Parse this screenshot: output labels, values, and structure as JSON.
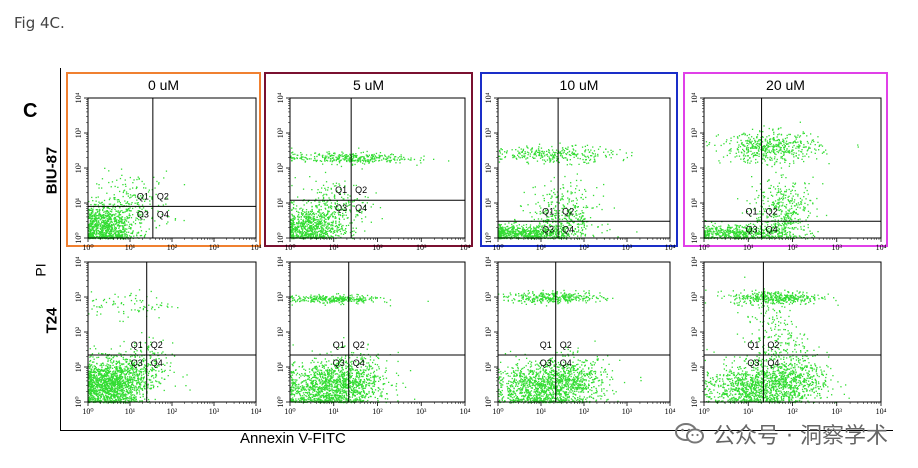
{
  "caption": "Fig 4C.",
  "panel_letter": "C",
  "y_axis_label": "PI",
  "x_axis_label": "Annexin V-FITC",
  "watermark": "公众号 · 洞察学术",
  "chart_data": {
    "type": "scatter",
    "plot_kind": "flow-cytometry-quadrant",
    "x_scale": "log",
    "y_scale": "log",
    "xlim": [
      1,
      10000
    ],
    "ylim": [
      1,
      10000
    ],
    "tick_labels": [
      "10⁰",
      "10¹",
      "10²",
      "10³",
      "10⁴"
    ],
    "quadrant_labels": [
      "Q1",
      "Q2",
      "Q3",
      "Q4"
    ],
    "point_color": "#33dd33",
    "columns": [
      {
        "label": "0 uM",
        "border_color": "#f08030"
      },
      {
        "label": "5 uM",
        "border_color": "#7a1030"
      },
      {
        "label": "10 uM",
        "border_color": "#1a2ec8"
      },
      {
        "label": "20 uM",
        "border_color": "#e040e8"
      }
    ],
    "rows": [
      {
        "label": "BIU-87",
        "gates": [
          {
            "x": 35,
            "y": 8
          },
          {
            "x": 25,
            "y": 12
          },
          {
            "x": 25,
            "y": 3
          },
          {
            "x": 20,
            "y": 3
          }
        ]
      },
      {
        "label": "T24",
        "gates": [
          {
            "x": 25,
            "y": 22
          },
          {
            "x": 22,
            "y": 22
          },
          {
            "x": 22,
            "y": 22
          },
          {
            "x": 22,
            "y": 22
          }
        ]
      }
    ]
  }
}
